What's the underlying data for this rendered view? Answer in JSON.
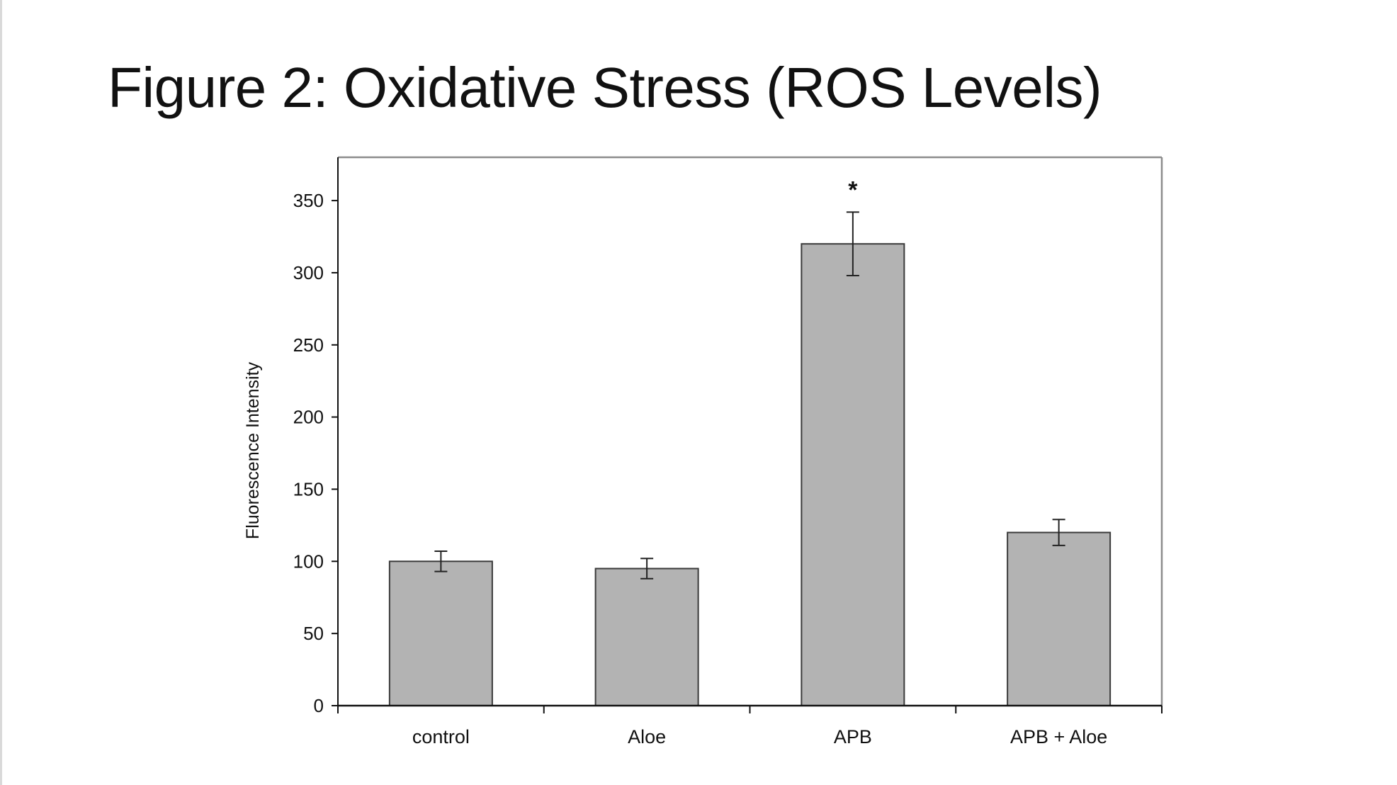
{
  "slide": {
    "title": "Figure 2: Oxidative Stress (ROS Levels)"
  },
  "chart_data": {
    "type": "bar",
    "title": "",
    "xlabel": "",
    "ylabel": "Fluorescence Intensity",
    "categories": [
      "control",
      "Aloe",
      "APB",
      "APB + Aloe"
    ],
    "values": [
      100,
      95,
      320,
      120
    ],
    "error": [
      7,
      7,
      22,
      9
    ],
    "significance": [
      "",
      "",
      "*",
      ""
    ],
    "ylim": [
      0,
      380
    ],
    "yticks": [
      0,
      50,
      100,
      150,
      200,
      250,
      300,
      350
    ],
    "grid": false,
    "legend": "none",
    "colors": {
      "bar_fill": "#b3b3b3",
      "bar_stroke": "#3a3a3a",
      "axis": "#111111",
      "frame": "#8c8c8c"
    }
  }
}
